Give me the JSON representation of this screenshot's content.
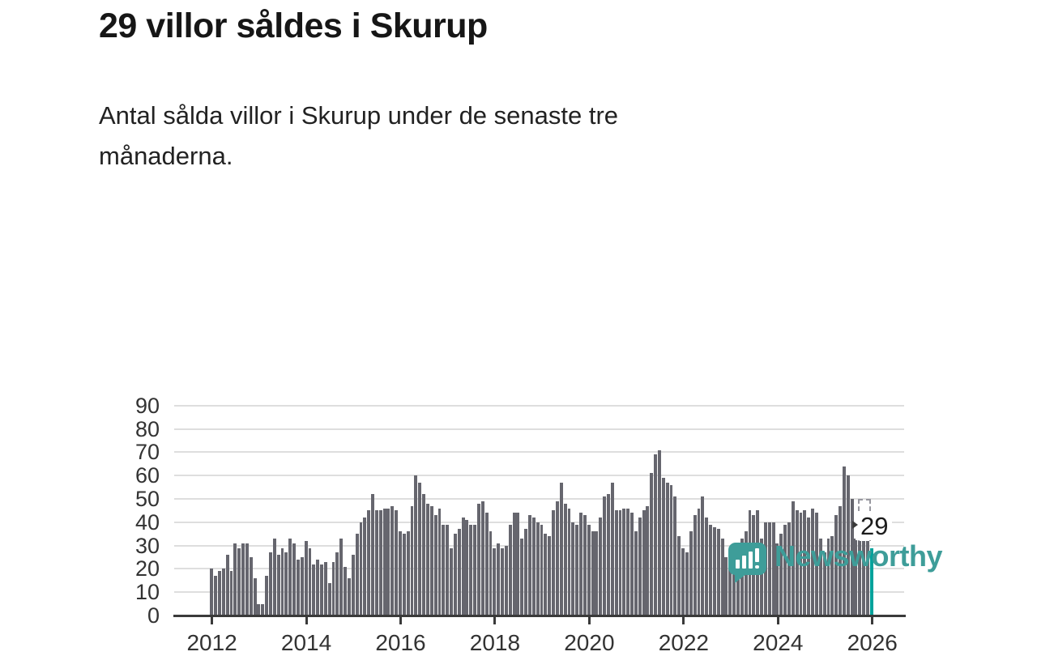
{
  "title": "29 villor såldes i Skurup",
  "subtitle": "Antal sålda villor i Skurup under de senaste tre månaderna.",
  "annotation": {
    "value": "29"
  },
  "logo": {
    "text": "Newsworthy",
    "icon": "speech-bubble-with-bar-chart-and-exclamation"
  },
  "colors": {
    "bar": "#66666e",
    "highlight": "#00a29b",
    "axis": "#3a3a3a",
    "grid": "#dedede",
    "dashed": "#97979f",
    "text_dark": "#161616",
    "tick_text": "#333333",
    "logo_teal": "#3e9d99"
  },
  "chart_data": {
    "type": "bar",
    "title": "29 villor såldes i Skurup",
    "subtitle": "Antal sålda villor i Skurup under de senaste tre månaderna.",
    "xlabel": "",
    "ylabel": "",
    "x_start": "2012-01",
    "x_step_months": 1,
    "x_tick_labels": [
      "2012",
      "2014",
      "2016",
      "2018",
      "2020",
      "2022",
      "2024",
      "2026"
    ],
    "y_tick_labels": [
      "0",
      "10",
      "20",
      "30",
      "40",
      "50",
      "60",
      "70",
      "80",
      "90"
    ],
    "ylim": [
      0,
      90
    ],
    "grid": true,
    "legend": "none",
    "highlight_last_bar": true,
    "annotation_value": "29",
    "dashed_reference": {
      "value": 50
    },
    "values": [
      20,
      17,
      19,
      20,
      26,
      19,
      31,
      29,
      31,
      31,
      25,
      16,
      5,
      5,
      17,
      27,
      33,
      26,
      29,
      27,
      33,
      31,
      24,
      25,
      32,
      29,
      22,
      24,
      22,
      23,
      14,
      23,
      27,
      33,
      21,
      16,
      26,
      35,
      40,
      42,
      45,
      52,
      45,
      45,
      46,
      46,
      47,
      45,
      36,
      35,
      36,
      47,
      60,
      57,
      52,
      48,
      47,
      43,
      46,
      39,
      39,
      29,
      35,
      37,
      42,
      41,
      39,
      39,
      48,
      49,
      44,
      36,
      29,
      31,
      29,
      30,
      39,
      44,
      44,
      33,
      37,
      43,
      42,
      40,
      39,
      35,
      34,
      45,
      49,
      57,
      48,
      46,
      40,
      39,
      44,
      43,
      39,
      36,
      36,
      42,
      51,
      52,
      57,
      45,
      45,
      46,
      46,
      44,
      36,
      42,
      45,
      47,
      61,
      69,
      71,
      59,
      57,
      56,
      51,
      34,
      29,
      27,
      36,
      43,
      46,
      51,
      42,
      39,
      38,
      37,
      33,
      25,
      24,
      23,
      25,
      33,
      36,
      45,
      43,
      45,
      33,
      40,
      40,
      40,
      31,
      35,
      39,
      40,
      49,
      45,
      44,
      45,
      42,
      46,
      44,
      33,
      27,
      33,
      34,
      43,
      47,
      64,
      60,
      50,
      33,
      32,
      32,
      32,
      29
    ]
  }
}
